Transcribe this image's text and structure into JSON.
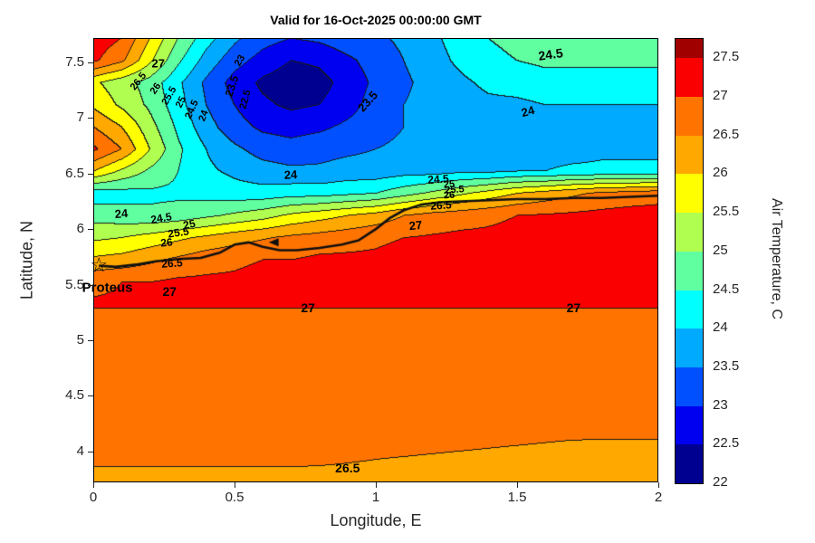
{
  "figure": {
    "title": "Valid for 16-Oct-2025 00:00:00 GMT",
    "background": "#FFFFFF"
  },
  "axes": {
    "xlabel": "Longitude, E",
    "ylabel": "Latitude, N",
    "xlim": [
      0,
      2
    ],
    "ylim": [
      3.72,
      7.72
    ],
    "xtick_values": [
      0,
      0.5,
      1,
      1.5,
      2
    ],
    "xtick_labels": [
      "0",
      "0.5",
      "1",
      "1.5",
      "2"
    ],
    "ytick_values": [
      4,
      4.5,
      5,
      5.5,
      6,
      6.5,
      7,
      7.5
    ],
    "ytick_labels": [
      "4",
      "4.5",
      "5",
      "5.5",
      "6",
      "6.5",
      "7",
      "7.5"
    ]
  },
  "colorbar": {
    "label": "Air Temperature, C",
    "value_min": 22,
    "value_max": 27.75,
    "tick_values": [
      22,
      22.5,
      23,
      23.5,
      24,
      24.5,
      25,
      25.5,
      26,
      26.5,
      27,
      27.5
    ],
    "tick_labels": [
      "22",
      "22.5",
      "23",
      "23.5",
      "24",
      "24.5",
      "25",
      "25.5",
      "26",
      "26.5",
      "27",
      "27.5"
    ],
    "colors_bottom_to_top": [
      "#000090",
      "#0000F0",
      "#0050FF",
      "#00AAFF",
      "#00FFFF",
      "#60FFA0",
      "#B0FF50",
      "#FFFF00",
      "#FFA800",
      "#FF7300",
      "#FA0000",
      "#A00000"
    ]
  },
  "chart_data": {
    "type": "heatmap",
    "subtype": "filled-contour",
    "units": "degrees C",
    "contour_interval": 0.5,
    "level_min": 22,
    "level_max": 27.5,
    "lon": [
      0,
      0.1,
      0.2,
      0.3,
      0.4,
      0.5,
      0.6,
      0.7,
      0.8,
      0.9,
      1.0,
      1.1,
      1.2,
      1.3,
      1.4,
      1.5,
      1.6,
      1.7,
      1.8,
      1.9,
      2.0
    ],
    "lat_top_to_bottom": [
      7.72,
      7.52,
      7.32,
      7.12,
      6.92,
      6.72,
      6.52,
      6.32,
      6.12,
      5.92,
      5.72,
      5.52,
      5.32,
      5.12,
      4.92,
      4.72,
      4.52,
      4.32,
      4.12,
      3.92,
      3.72
    ],
    "temperature_c": [
      [
        27.3,
        27.0,
        26.0,
        25.0,
        24.2,
        23.6,
        23.2,
        23.0,
        23.1,
        23.3,
        23.4,
        23.6,
        23.9,
        24.2,
        24.5,
        24.6,
        24.7,
        24.7,
        24.8,
        24.8,
        24.8
      ],
      [
        27.1,
        26.6,
        25.6,
        24.6,
        23.8,
        23.2,
        22.8,
        22.5,
        22.6,
        22.9,
        23.2,
        23.5,
        23.8,
        24.1,
        24.4,
        24.5,
        24.6,
        24.6,
        24.6,
        24.6,
        24.6
      ],
      [
        25.6,
        25.2,
        24.8,
        24.1,
        23.4,
        22.8,
        22.4,
        22.2,
        22.3,
        22.7,
        23.1,
        23.4,
        23.7,
        23.9,
        24.1,
        24.2,
        24.3,
        24.3,
        24.3,
        24.3,
        24.3
      ],
      [
        25.9,
        25.4,
        24.9,
        24.2,
        23.5,
        23.0,
        22.6,
        22.4,
        22.5,
        22.8,
        23.2,
        23.5,
        23.7,
        23.8,
        23.9,
        23.9,
        24.0,
        24.0,
        24.0,
        24.0,
        24.0
      ],
      [
        26.5,
        26.0,
        25.2,
        24.4,
        23.7,
        23.2,
        22.9,
        22.8,
        22.9,
        23.1,
        23.3,
        23.5,
        23.6,
        23.7,
        23.7,
        23.8,
        23.8,
        23.8,
        23.8,
        23.8,
        23.8
      ],
      [
        27.1,
        26.5,
        25.5,
        24.6,
        24.0,
        23.6,
        23.3,
        23.2,
        23.3,
        23.4,
        23.5,
        23.6,
        23.7,
        23.7,
        23.8,
        23.8,
        23.8,
        23.8,
        23.9,
        23.9,
        23.9
      ],
      [
        26.0,
        25.4,
        24.9,
        24.5,
        24.1,
        23.9,
        23.7,
        23.6,
        23.6,
        23.7,
        23.7,
        23.8,
        23.8,
        23.9,
        23.9,
        24.0,
        24.0,
        24.1,
        24.1,
        24.1,
        24.1
      ],
      [
        24.2,
        24.3,
        24.4,
        24.4,
        24.3,
        24.2,
        24.2,
        24.3,
        24.3,
        24.4,
        24.5,
        24.8,
        25.1,
        25.4,
        25.7,
        26.0,
        26.2,
        26.4,
        26.6,
        26.7,
        26.8
      ],
      [
        24.8,
        24.7,
        24.6,
        24.7,
        24.9,
        25.1,
        25.3,
        25.6,
        25.8,
        26.0,
        26.2,
        26.5,
        26.7,
        26.8,
        26.9,
        27.0,
        27.05,
        27.1,
        27.15,
        27.2,
        27.2
      ],
      [
        25.4,
        25.5,
        25.7,
        25.9,
        26.1,
        26.3,
        26.45,
        26.6,
        26.7,
        26.8,
        26.9,
        27.0,
        27.05,
        27.1,
        27.1,
        27.15,
        27.15,
        27.2,
        27.2,
        27.2,
        27.2
      ],
      [
        26.1,
        26.2,
        26.4,
        26.6,
        26.8,
        26.9,
        27.0,
        27.0,
        27.1,
        27.1,
        27.1,
        27.2,
        27.2,
        27.2,
        27.2,
        27.2,
        27.2,
        27.2,
        27.2,
        27.2,
        27.2
      ],
      [
        26.9,
        27.0,
        27.0,
        27.1,
        27.1,
        27.1,
        27.2,
        27.2,
        27.2,
        27.2,
        27.2,
        27.2,
        27.2,
        27.3,
        27.3,
        27.3,
        27.3,
        27.3,
        27.3,
        27.3,
        27.3
      ],
      [
        27.05,
        27.05,
        27.05,
        27.05,
        27.05,
        27.05,
        27.05,
        27.05,
        27.05,
        27.05,
        27.05,
        27.05,
        27.05,
        27.05,
        27.05,
        27.05,
        27.05,
        27.05,
        27.05,
        27.05,
        27.05
      ],
      [
        26.8,
        26.8,
        26.8,
        26.8,
        26.8,
        26.8,
        26.8,
        26.8,
        26.8,
        26.8,
        26.8,
        26.8,
        26.8,
        26.8,
        26.8,
        26.8,
        26.8,
        26.8,
        26.8,
        26.8,
        26.8
      ],
      [
        26.8,
        26.8,
        26.8,
        26.8,
        26.8,
        26.8,
        26.8,
        26.8,
        26.8,
        26.8,
        26.8,
        26.8,
        26.8,
        26.8,
        26.8,
        26.8,
        26.8,
        26.8,
        26.8,
        26.8,
        26.8
      ],
      [
        26.8,
        26.8,
        26.8,
        26.8,
        26.8,
        26.8,
        26.8,
        26.8,
        26.8,
        26.8,
        26.8,
        26.8,
        26.8,
        26.8,
        26.8,
        26.8,
        26.8,
        26.8,
        26.8,
        26.8,
        26.8
      ],
      [
        26.8,
        26.8,
        26.8,
        26.8,
        26.8,
        26.8,
        26.8,
        26.8,
        26.8,
        26.8,
        26.8,
        26.8,
        26.8,
        26.8,
        26.8,
        26.8,
        26.8,
        26.8,
        26.8,
        26.8,
        26.8
      ],
      [
        26.8,
        26.8,
        26.8,
        26.8,
        26.8,
        26.8,
        26.8,
        26.8,
        26.8,
        26.8,
        26.8,
        26.8,
        26.8,
        26.8,
        26.8,
        26.8,
        26.8,
        26.8,
        26.8,
        26.8,
        26.8
      ],
      [
        26.7,
        26.7,
        26.7,
        26.7,
        26.7,
        26.7,
        26.7,
        26.7,
        26.7,
        26.68,
        26.66,
        26.64,
        26.62,
        26.6,
        26.58,
        26.56,
        26.54,
        26.52,
        26.52,
        26.52,
        26.52
      ],
      [
        26.55,
        26.55,
        26.55,
        26.55,
        26.55,
        26.55,
        26.55,
        26.55,
        26.54,
        26.52,
        26.5,
        26.48,
        26.46,
        26.44,
        26.42,
        26.4,
        26.38,
        26.36,
        26.35,
        26.35,
        26.35
      ],
      [
        26.4,
        26.4,
        26.4,
        26.4,
        26.4,
        26.4,
        26.4,
        26.4,
        26.4,
        26.4,
        26.4,
        26.4,
        26.4,
        26.4,
        26.4,
        26.4,
        26.4,
        26.4,
        26.4,
        26.4,
        26.4
      ]
    ],
    "contour_labels": [
      {
        "text": "27",
        "lon": 0.23,
        "lat": 7.49,
        "rot": 0,
        "size": 13
      },
      {
        "text": "26.5",
        "lon": 0.16,
        "lat": 7.33,
        "rot": -52,
        "size": 11
      },
      {
        "text": "26",
        "lon": 0.22,
        "lat": 7.26,
        "rot": -56,
        "size": 11
      },
      {
        "text": "25.5",
        "lon": 0.27,
        "lat": 7.2,
        "rot": -60,
        "size": 11
      },
      {
        "text": "25",
        "lon": 0.31,
        "lat": 7.14,
        "rot": -63,
        "size": 11
      },
      {
        "text": "24.5",
        "lon": 0.35,
        "lat": 7.08,
        "rot": -66,
        "size": 11
      },
      {
        "text": "24",
        "lon": 0.39,
        "lat": 7.02,
        "rot": -70,
        "size": 11
      },
      {
        "text": "23",
        "lon": 0.52,
        "lat": 7.52,
        "rot": -60,
        "size": 11
      },
      {
        "text": "23.5",
        "lon": 0.49,
        "lat": 7.29,
        "rot": -72,
        "size": 12
      },
      {
        "text": "22.5",
        "lon": 0.54,
        "lat": 7.17,
        "rot": -75,
        "size": 11
      },
      {
        "text": "23.5",
        "lon": 0.97,
        "lat": 7.15,
        "rot": -48,
        "size": 13
      },
      {
        "text": "24",
        "lon": 1.54,
        "lat": 7.06,
        "rot": -15,
        "size": 13
      },
      {
        "text": "24.5",
        "lon": 1.62,
        "lat": 7.57,
        "rot": -8,
        "size": 14
      },
      {
        "text": "24",
        "lon": 0.7,
        "lat": 6.49,
        "rot": -3,
        "size": 13
      },
      {
        "text": "24",
        "lon": 0.1,
        "lat": 6.14,
        "rot": -5,
        "size": 13
      },
      {
        "text": "24.5",
        "lon": 0.24,
        "lat": 6.1,
        "rot": -10,
        "size": 12
      },
      {
        "text": "25",
        "lon": 0.34,
        "lat": 6.04,
        "rot": -12,
        "size": 12
      },
      {
        "text": "25.5",
        "lon": 0.3,
        "lat": 5.97,
        "rot": -8,
        "size": 12
      },
      {
        "text": "26",
        "lon": 0.26,
        "lat": 5.88,
        "rot": -6,
        "size": 12
      },
      {
        "text": "26.5",
        "lon": 0.28,
        "lat": 5.69,
        "rot": -4,
        "size": 12
      },
      {
        "text": "27",
        "lon": 0.27,
        "lat": 5.44,
        "rot": 0,
        "size": 14
      },
      {
        "text": "24.5",
        "lon": 1.22,
        "lat": 6.45,
        "rot": -4,
        "size": 12
      },
      {
        "text": "25",
        "lon": 1.26,
        "lat": 6.4,
        "rot": -4,
        "size": 11
      },
      {
        "text": "25.5",
        "lon": 1.28,
        "lat": 6.35,
        "rot": -4,
        "size": 11
      },
      {
        "text": "26",
        "lon": 1.26,
        "lat": 6.3,
        "rot": -4,
        "size": 11
      },
      {
        "text": "26.5",
        "lon": 1.23,
        "lat": 6.21,
        "rot": -4,
        "size": 12
      },
      {
        "text": "27",
        "lon": 1.14,
        "lat": 6.03,
        "rot": -6,
        "size": 13
      },
      {
        "text": "27",
        "lon": 0.76,
        "lat": 5.29,
        "rot": 0,
        "size": 14
      },
      {
        "text": "27",
        "lon": 1.7,
        "lat": 5.29,
        "rot": 0,
        "size": 14
      },
      {
        "text": "26.5",
        "lon": 0.9,
        "lat": 3.85,
        "rot": 0,
        "size": 14
      }
    ],
    "station": {
      "name": "Proteus",
      "lon": 0.02,
      "lat": 5.67,
      "marker": "star",
      "label_lon": 0.05,
      "label_lat": 5.47
    },
    "track_lonlat": [
      [
        0.02,
        5.67
      ],
      [
        0.08,
        5.66
      ],
      [
        0.15,
        5.68
      ],
      [
        0.22,
        5.71
      ],
      [
        0.3,
        5.73
      ],
      [
        0.38,
        5.74
      ],
      [
        0.45,
        5.79
      ],
      [
        0.5,
        5.86
      ],
      [
        0.55,
        5.88
      ],
      [
        0.6,
        5.84
      ],
      [
        0.66,
        5.81
      ],
      [
        0.72,
        5.81
      ],
      [
        0.8,
        5.83
      ],
      [
        0.88,
        5.86
      ],
      [
        0.94,
        5.9
      ],
      [
        1.0,
        6.0
      ],
      [
        1.05,
        6.1
      ],
      [
        1.1,
        6.17
      ],
      [
        1.16,
        6.22
      ],
      [
        1.22,
        6.24
      ],
      [
        1.3,
        6.25
      ],
      [
        1.4,
        6.26
      ],
      [
        1.5,
        6.27
      ],
      [
        1.6,
        6.27
      ],
      [
        1.7,
        6.28
      ],
      [
        1.8,
        6.28
      ],
      [
        1.9,
        6.29
      ],
      [
        2.0,
        6.3
      ]
    ],
    "track_arrow": {
      "lon": 0.64,
      "lat": 5.88
    }
  }
}
